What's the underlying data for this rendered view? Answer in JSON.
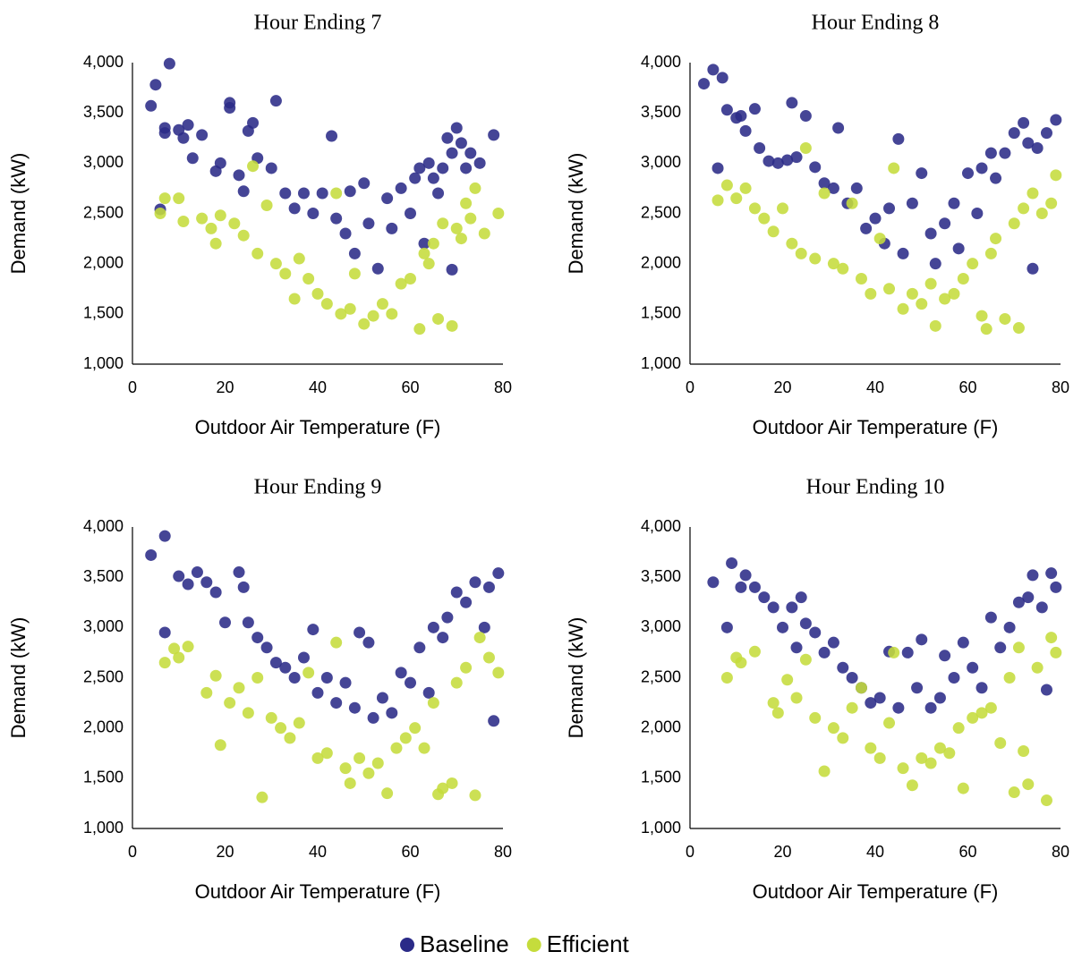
{
  "chart_data": [
    {
      "type": "scatter",
      "title": "Hour Ending 7",
      "x_label": "Outdoor Air Temperature (F)",
      "y_label": "Demand (kW)",
      "xlim": [
        0,
        80
      ],
      "xticks": [
        0,
        20,
        40,
        60,
        80
      ],
      "ylim": [
        1000,
        4000
      ],
      "yticks": [
        {
          "value": 1000,
          "label": "1,000"
        },
        {
          "value": 1500,
          "label": "1,500"
        },
        {
          "value": 2000,
          "label": "2,000"
        },
        {
          "value": 2500,
          "label": "2,500"
        },
        {
          "value": 3000,
          "label": "3,000"
        },
        {
          "value": 3500,
          "label": "3,500"
        },
        {
          "value": 4000,
          "label": "4,000"
        }
      ],
      "legend": "bottom",
      "series": [
        {
          "name": "Baseline",
          "color": "#2b2b88",
          "x": [
            4,
            5,
            7,
            7,
            8,
            10,
            11,
            12,
            13,
            15,
            18,
            19,
            21,
            21,
            23,
            24,
            25,
            26,
            27,
            30,
            31,
            33,
            35,
            37,
            39,
            41,
            43,
            44,
            46,
            47,
            48,
            50,
            51,
            53,
            55,
            56,
            58,
            60,
            61,
            62,
            63,
            64,
            65,
            66,
            67,
            68,
            69,
            70,
            71,
            72,
            73,
            75,
            78,
            69,
            6
          ],
          "values": [
            3570,
            3780,
            3300,
            3350,
            3990,
            3330,
            3250,
            3380,
            3050,
            3280,
            2920,
            3000,
            3600,
            3550,
            2880,
            2720,
            3320,
            3400,
            3050,
            2950,
            3620,
            2700,
            2550,
            2700,
            2500,
            2700,
            3270,
            2450,
            2300,
            2720,
            2100,
            2800,
            2400,
            1950,
            2650,
            2350,
            2750,
            2500,
            2850,
            2950,
            2200,
            3000,
            2850,
            2700,
            2950,
            3250,
            3100,
            3350,
            3200,
            2950,
            3100,
            3000,
            3280,
            1940,
            2540
          ]
        },
        {
          "name": "Efficient",
          "color": "#c5dc3c",
          "x": [
            6,
            7,
            10,
            11,
            15,
            17,
            18,
            19,
            22,
            24,
            26,
            27,
            29,
            31,
            33,
            35,
            36,
            38,
            40,
            42,
            44,
            45,
            47,
            48,
            50,
            52,
            54,
            56,
            58,
            60,
            62,
            63,
            65,
            66,
            67,
            69,
            70,
            72,
            74,
            76,
            79,
            71,
            73,
            64
          ],
          "values": [
            2500,
            2650,
            2650,
            2420,
            2450,
            2350,
            2200,
            2480,
            2400,
            2280,
            2970,
            2100,
            2580,
            2000,
            1900,
            1650,
            2050,
            1850,
            1700,
            1600,
            2700,
            1500,
            1550,
            1900,
            1400,
            1480,
            1600,
            1500,
            1800,
            1850,
            1350,
            2100,
            2200,
            1450,
            2400,
            1380,
            2350,
            2600,
            2750,
            2300,
            2500,
            2250,
            2450,
            2000
          ]
        }
      ]
    },
    {
      "type": "scatter",
      "title": "Hour Ending 8",
      "x_label": "Outdoor Air Temperature (F)",
      "y_label": "Demand (kW)",
      "xlim": [
        0,
        80
      ],
      "xticks": [
        0,
        20,
        40,
        60,
        80
      ],
      "ylim": [
        1000,
        4000
      ],
      "yticks": [
        {
          "value": 1000,
          "label": "1,000"
        },
        {
          "value": 1500,
          "label": "1,500"
        },
        {
          "value": 2000,
          "label": "2,000"
        },
        {
          "value": 2500,
          "label": "2,500"
        },
        {
          "value": 3000,
          "label": "3,000"
        },
        {
          "value": 3500,
          "label": "3,500"
        },
        {
          "value": 4000,
          "label": "4,000"
        }
      ],
      "series": [
        {
          "color": "#2b2b88",
          "x": [
            3,
            5,
            6,
            7,
            8,
            10,
            11,
            12,
            14,
            15,
            17,
            19,
            21,
            22,
            23,
            25,
            27,
            29,
            31,
            32,
            34,
            36,
            38,
            40,
            42,
            43,
            45,
            46,
            48,
            50,
            52,
            53,
            55,
            57,
            58,
            60,
            62,
            63,
            65,
            66,
            68,
            70,
            72,
            73,
            74,
            75,
            77,
            79
          ],
          "values": [
            3790,
            3930,
            2950,
            3850,
            3530,
            3450,
            3470,
            3320,
            3540,
            3150,
            3020,
            3000,
            3030,
            3600,
            3060,
            3470,
            2960,
            2800,
            2750,
            3350,
            2600,
            2750,
            2350,
            2450,
            2200,
            2550,
            3240,
            2100,
            2600,
            2900,
            2300,
            2000,
            2400,
            2600,
            2150,
            2900,
            2500,
            2950,
            3100,
            2850,
            3100,
            3300,
            3400,
            3200,
            1950,
            3150,
            3300,
            3430
          ]
        },
        {
          "color": "#c5dc3c",
          "x": [
            6,
            8,
            10,
            12,
            14,
            16,
            18,
            20,
            22,
            24,
            25,
            27,
            29,
            31,
            33,
            35,
            37,
            39,
            41,
            43,
            44,
            46,
            48,
            50,
            52,
            53,
            55,
            57,
            59,
            61,
            63,
            64,
            65,
            66,
            68,
            70,
            71,
            72,
            74,
            76,
            78,
            79
          ],
          "values": [
            2630,
            2780,
            2650,
            2750,
            2550,
            2450,
            2320,
            2550,
            2200,
            2100,
            3150,
            2050,
            2700,
            2000,
            1950,
            2600,
            1850,
            1700,
            2250,
            1750,
            2950,
            1550,
            1700,
            1600,
            1800,
            1380,
            1650,
            1700,
            1850,
            2000,
            1480,
            1350,
            2100,
            2250,
            1450,
            2400,
            1360,
            2550,
            2700,
            2500,
            2600,
            2880
          ]
        }
      ]
    },
    {
      "type": "scatter",
      "title": "Hour Ending 9",
      "x_label": "Outdoor Air Temperature (F)",
      "y_label": "Demand (kW)",
      "xlim": [
        0,
        80
      ],
      "xticks": [
        0,
        20,
        40,
        60,
        80
      ],
      "ylim": [
        1000,
        4000
      ],
      "yticks": [
        {
          "value": 1000,
          "label": "1,000"
        },
        {
          "value": 1500,
          "label": "1,500"
        },
        {
          "value": 2000,
          "label": "2,000"
        },
        {
          "value": 2500,
          "label": "2,500"
        },
        {
          "value": 3000,
          "label": "3,000"
        },
        {
          "value": 3500,
          "label": "3,500"
        },
        {
          "value": 4000,
          "label": "4,000"
        }
      ],
      "series": [
        {
          "color": "#2b2b88",
          "x": [
            4,
            7,
            7,
            10,
            12,
            14,
            16,
            18,
            20,
            23,
            24,
            25,
            27,
            29,
            31,
            33,
            35,
            37,
            39,
            40,
            42,
            44,
            46,
            48,
            49,
            51,
            52,
            54,
            56,
            58,
            60,
            62,
            64,
            65,
            67,
            68,
            70,
            72,
            74,
            76,
            77,
            78,
            79
          ],
          "values": [
            3720,
            2950,
            3910,
            3510,
            3430,
            3550,
            3450,
            3350,
            3050,
            3550,
            3400,
            3050,
            2900,
            2800,
            2650,
            2600,
            2500,
            2700,
            2980,
            2350,
            2500,
            2250,
            2450,
            2200,
            2950,
            2850,
            2100,
            2300,
            2150,
            2550,
            2450,
            2800,
            2350,
            3000,
            2900,
            3100,
            3350,
            3250,
            3450,
            3000,
            3400,
            2070,
            3540
          ]
        },
        {
          "color": "#c5dc3c",
          "x": [
            7,
            9,
            10,
            12,
            16,
            18,
            19,
            21,
            23,
            25,
            27,
            28,
            30,
            32,
            34,
            36,
            38,
            40,
            42,
            44,
            46,
            47,
            49,
            51,
            53,
            55,
            57,
            59,
            61,
            63,
            65,
            66,
            67,
            69,
            70,
            72,
            74,
            75,
            77,
            79
          ],
          "values": [
            2650,
            2790,
            2700,
            2810,
            2350,
            2520,
            1830,
            2250,
            2400,
            2150,
            2500,
            1310,
            2100,
            2000,
            1900,
            2050,
            2550,
            1700,
            1750,
            2850,
            1600,
            1450,
            1700,
            1550,
            1650,
            1350,
            1800,
            1900,
            2000,
            1800,
            2250,
            1340,
            1400,
            1450,
            2450,
            2600,
            1330,
            2900,
            2700,
            2550
          ]
        }
      ]
    },
    {
      "type": "scatter",
      "title": "Hour Ending 10",
      "x_label": "Outdoor Air Temperature (F)",
      "y_label": "Demand (kW)",
      "xlim": [
        0,
        80
      ],
      "xticks": [
        0,
        20,
        40,
        60,
        80
      ],
      "ylim": [
        1000,
        4000
      ],
      "yticks": [
        {
          "value": 1000,
          "label": "1,000"
        },
        {
          "value": 1500,
          "label": "1,500"
        },
        {
          "value": 2000,
          "label": "2,000"
        },
        {
          "value": 2500,
          "label": "2,500"
        },
        {
          "value": 3000,
          "label": "3,000"
        },
        {
          "value": 3500,
          "label": "3,500"
        },
        {
          "value": 4000,
          "label": "4,000"
        }
      ],
      "series": [
        {
          "color": "#2b2b88",
          "x": [
            5,
            8,
            9,
            11,
            12,
            14,
            16,
            18,
            20,
            22,
            23,
            24,
            25,
            27,
            29,
            31,
            33,
            35,
            37,
            39,
            41,
            43,
            45,
            47,
            49,
            50,
            52,
            54,
            55,
            57,
            59,
            61,
            63,
            65,
            67,
            69,
            71,
            73,
            74,
            76,
            77,
            78,
            79
          ],
          "values": [
            3450,
            3000,
            3640,
            3400,
            3520,
            3400,
            3300,
            3200,
            3000,
            3200,
            2800,
            3300,
            3040,
            2950,
            2750,
            2850,
            2600,
            2500,
            2400,
            2250,
            2300,
            2760,
            2200,
            2750,
            2400,
            2880,
            2200,
            2300,
            2720,
            2500,
            2850,
            2600,
            2400,
            3100,
            2800,
            3000,
            3250,
            3300,
            3520,
            3200,
            2380,
            3540,
            3400
          ]
        },
        {
          "color": "#c5dc3c",
          "x": [
            8,
            10,
            11,
            14,
            18,
            19,
            21,
            23,
            25,
            27,
            29,
            31,
            33,
            35,
            37,
            39,
            41,
            43,
            44,
            46,
            48,
            50,
            52,
            54,
            56,
            58,
            59,
            61,
            63,
            65,
            67,
            69,
            70,
            71,
            72,
            73,
            75,
            77,
            78,
            79
          ],
          "values": [
            2500,
            2700,
            2650,
            2760,
            2250,
            2150,
            2480,
            2300,
            2680,
            2100,
            1570,
            2000,
            1900,
            2200,
            2400,
            1800,
            1700,
            2050,
            2750,
            1600,
            1430,
            1700,
            1650,
            1800,
            1750,
            2000,
            1400,
            2100,
            2150,
            2200,
            1850,
            2500,
            1360,
            2800,
            1770,
            1440,
            2600,
            1280,
            2900,
            2750
          ]
        }
      ]
    }
  ]
}
